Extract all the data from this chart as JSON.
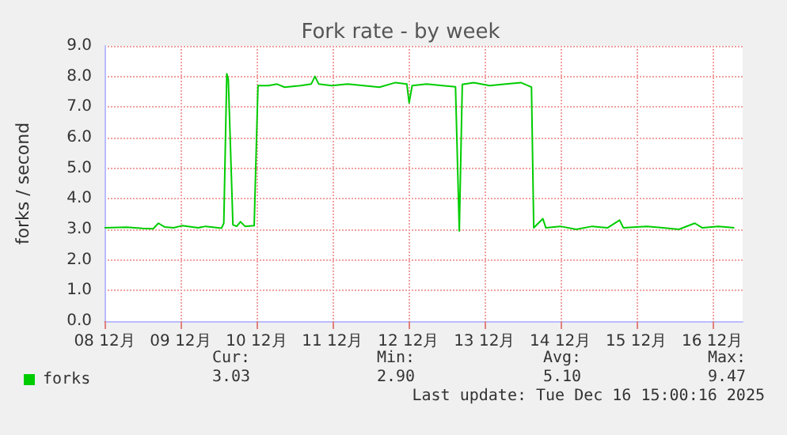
{
  "chart_data": {
    "type": "line",
    "title": "Fork rate - by week",
    "ylabel": "forks / second",
    "xlim": [
      "2025-12-08",
      "2025-12-16T09:36"
    ],
    "xticks": [
      {
        "value": "2025-12-08",
        "label": "08 12月"
      },
      {
        "value": "2025-12-09",
        "label": "09 12月"
      },
      {
        "value": "2025-12-10",
        "label": "10 12月"
      },
      {
        "value": "2025-12-11",
        "label": "11 12月"
      },
      {
        "value": "2025-12-12",
        "label": "12 12月"
      },
      {
        "value": "2025-12-13",
        "label": "13 12月"
      },
      {
        "value": "2025-12-14",
        "label": "14 12月"
      },
      {
        "value": "2025-12-15",
        "label": "15 12月"
      },
      {
        "value": "2025-12-16",
        "label": "16 12月"
      }
    ],
    "ylim": [
      0,
      9
    ],
    "yticks": [
      {
        "value": 0,
        "label": "0.0"
      },
      {
        "value": 1,
        "label": "1.0"
      },
      {
        "value": 2,
        "label": "2.0"
      },
      {
        "value": 3,
        "label": "3.0"
      },
      {
        "value": 4,
        "label": "4.0"
      },
      {
        "value": 5,
        "label": "5.0"
      },
      {
        "value": 6,
        "label": "6.0"
      },
      {
        "value": 7,
        "label": "7.0"
      },
      {
        "value": 8,
        "label": "8.0"
      },
      {
        "value": 9,
        "label": "9.0"
      }
    ],
    "grid": true,
    "legend": "bottom left",
    "marker": "none",
    "line_style": "solid",
    "annotations": [
      "Cur:",
      "Min:",
      "Avg:",
      "Max:",
      "3.03",
      "2.90",
      "5.10",
      "9.47",
      "Last update: Tue Dec 16 15:00:16 2025"
    ],
    "series": [
      {
        "name": "forks",
        "color": "#00cc00",
        "x": [
          "2025-12-08T00:00",
          "2025-12-08T06:58",
          "2025-12-08T12:00",
          "2025-12-08T15:22",
          "2025-12-08T17:02",
          "2025-12-08T18:58",
          "2025-12-08T21:50",
          "2025-12-09T00:29",
          "2025-12-09T05:31",
          "2025-12-09T07:55",
          "2025-12-09T12:58",
          "2025-12-09T13:41",
          "2025-12-09T14:38",
          "2025-12-09T15:07",
          "2025-12-09T16:34",
          "2025-12-09T17:46",
          "2025-12-09T18:58",
          "2025-12-09T20:24",
          "2025-12-09T23:17",
          "2025-12-10T00:29",
          "2025-12-10T03:50",
          "2025-12-10T06:29",
          "2025-12-10T08:53",
          "2025-12-10T13:55",
          "2025-12-10T17:17",
          "2025-12-10T18:29",
          "2025-12-10T19:41",
          "2025-12-10T23:46",
          "2025-12-11T04:48",
          "2025-12-11T09:50",
          "2025-12-11T14:53",
          "2025-12-11T19:55",
          "2025-12-11T23:31",
          "2025-12-12T00:14",
          "2025-12-12T01:12",
          "2025-12-12T05:46",
          "2025-12-12T10:48",
          "2025-12-12T14:53",
          "2025-12-12T16:05",
          "2025-12-12T17:02",
          "2025-12-12T20:38",
          "2025-12-13T01:41",
          "2025-12-13T06:43",
          "2025-12-13T11:31",
          "2025-12-13T14:53",
          "2025-12-13T15:36",
          "2025-12-13T18:29",
          "2025-12-13T19:26",
          "2025-12-14T00:00",
          "2025-12-14T05:02",
          "2025-12-14T10:05",
          "2025-12-14T14:53",
          "2025-12-14T18:43",
          "2025-12-14T19:55",
          "2025-12-15T03:22",
          "2025-12-15T08:24",
          "2025-12-15T13:26",
          "2025-12-15T18:29",
          "2025-12-15T20:53",
          "2025-12-16T01:55",
          "2025-12-16T06:58"
        ],
        "values": [
          3.05,
          3.07,
          3.03,
          3.02,
          3.2,
          3.08,
          3.05,
          3.12,
          3.05,
          3.1,
          3.04,
          3.2,
          8.09,
          7.9,
          3.15,
          3.1,
          3.25,
          3.1,
          3.12,
          7.7,
          7.7,
          7.75,
          7.65,
          7.7,
          7.75,
          8.0,
          7.75,
          7.7,
          7.75,
          7.7,
          7.65,
          7.8,
          7.75,
          7.14,
          7.7,
          7.75,
          7.7,
          7.66,
          2.95,
          7.74,
          7.8,
          7.7,
          7.75,
          7.8,
          7.65,
          3.05,
          3.35,
          3.05,
          3.1,
          3.0,
          3.1,
          3.05,
          3.3,
          3.05,
          3.1,
          3.05,
          3.0,
          3.2,
          3.05,
          3.1,
          3.05
        ]
      }
    ]
  }
}
